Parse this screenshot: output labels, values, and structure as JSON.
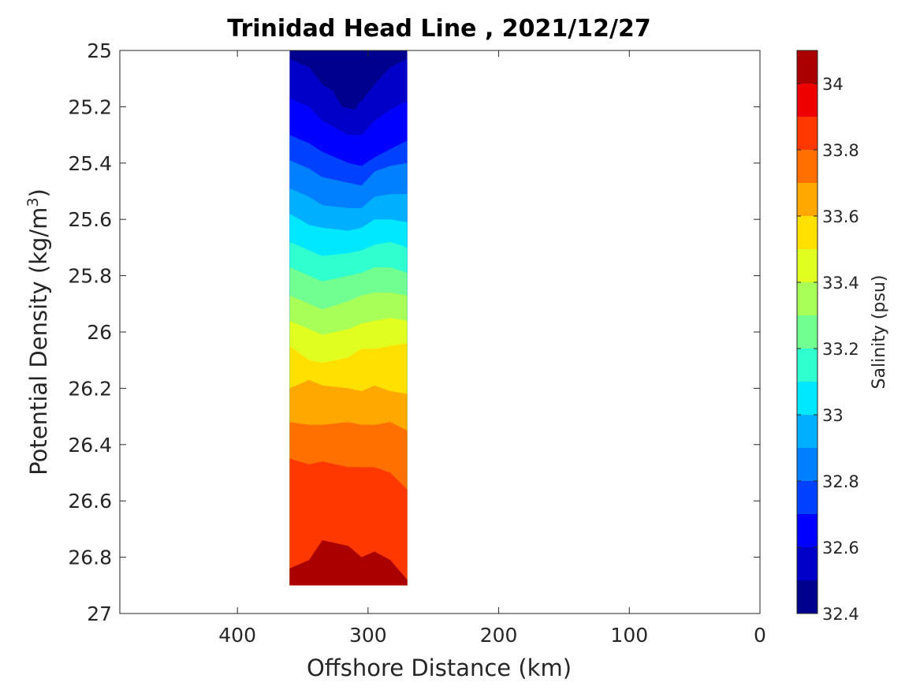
{
  "chart_data": {
    "type": "heatmap",
    "subtype": "filled-contour",
    "title": "Trinidad Head Line , 2021/12/27",
    "xlabel": "Offshore Distance (km)",
    "ylabel_main": "Potential Density (kg/m",
    "ylabel_sup": "3",
    "ylabel_close": ")",
    "xlim": [
      490,
      0
    ],
    "x_reversed": true,
    "xticks": [
      400,
      300,
      200,
      100,
      0
    ],
    "xtick_labels": [
      "400",
      "300",
      "200",
      "100",
      "0"
    ],
    "ylim": [
      25,
      27
    ],
    "y_reversed": true,
    "yticks": [
      25,
      25.2,
      25.4,
      25.6,
      25.8,
      26,
      26.2,
      26.4,
      26.6,
      26.8,
      27
    ],
    "ytick_labels": [
      "25",
      "25.2",
      "25.4",
      "25.6",
      "25.8",
      "26",
      "26.2",
      "26.4",
      "26.6",
      "26.8",
      "27"
    ],
    "colorbar": {
      "label": "Salinity (psu)",
      "range": [
        32.4,
        34.1
      ],
      "ticks": [
        32.4,
        32.6,
        32.8,
        33,
        33.2,
        33.4,
        33.6,
        33.8,
        34
      ],
      "tick_labels": [
        "32.4",
        "32.6",
        "32.8",
        "33",
        "33.2",
        "33.4",
        "33.6",
        "33.8",
        "34"
      ],
      "levels": [
        32.4,
        32.5,
        32.6,
        32.7,
        32.8,
        32.9,
        33.0,
        33.1,
        33.2,
        33.3,
        33.4,
        33.5,
        33.6,
        33.7,
        33.8,
        33.9,
        34.0,
        34.1
      ],
      "colors": [
        "#00008F",
        "#0000C8",
        "#0000FF",
        "#0040FF",
        "#0080FF",
        "#00B0FF",
        "#00E8FF",
        "#30FFD0",
        "#70FF90",
        "#A8FF58",
        "#E0FF20",
        "#FFE000",
        "#FFA800",
        "#FF7000",
        "#FF3800",
        "#EE0000",
        "#AA0000"
      ]
    },
    "data_extent": {
      "x": [
        360,
        270
      ],
      "y": [
        25,
        26.9
      ]
    },
    "grid": false,
    "salinity_boundaries": [
      {
        "level": 32.5,
        "points": [
          [
            360,
            25.0
          ],
          [
            345,
            25.0
          ],
          [
            335,
            25.0
          ],
          [
            315,
            25.0
          ],
          [
            305,
            25.0
          ],
          [
            295,
            25.0
          ],
          [
            283,
            25.0
          ],
          [
            270,
            25.0
          ]
        ],
        "note": ""
      },
      {
        "level": 32.6,
        "points": [
          [
            360,
            25.03
          ],
          [
            345,
            25.06
          ],
          [
            335,
            25.12
          ],
          [
            315,
            25.18
          ],
          [
            305,
            25.18
          ],
          [
            295,
            25.12
          ],
          [
            283,
            25.06
          ],
          [
            270,
            25.03
          ]
        ]
      },
      {
        "level": 32.7,
        "points": [
          [
            360,
            25.17
          ],
          [
            345,
            25.2
          ],
          [
            335,
            25.25
          ],
          [
            315,
            25.3
          ],
          [
            305,
            25.3
          ],
          [
            295,
            25.25
          ],
          [
            283,
            25.21
          ],
          [
            270,
            25.18
          ]
        ]
      },
      {
        "level": 32.8,
        "points": [
          [
            360,
            25.3
          ],
          [
            345,
            25.33
          ],
          [
            335,
            25.36
          ],
          [
            315,
            25.4
          ],
          [
            305,
            25.41
          ],
          [
            295,
            25.38
          ],
          [
            283,
            25.35
          ],
          [
            270,
            25.32
          ]
        ]
      },
      {
        "level": 32.9,
        "points": [
          [
            360,
            25.39
          ],
          [
            345,
            25.42
          ],
          [
            335,
            25.45
          ],
          [
            315,
            25.47
          ],
          [
            305,
            25.48
          ],
          [
            295,
            25.43
          ],
          [
            283,
            25.41
          ],
          [
            270,
            25.4
          ]
        ]
      },
      {
        "level": 33.0,
        "points": [
          [
            360,
            25.49
          ],
          [
            345,
            25.52
          ],
          [
            335,
            25.55
          ],
          [
            315,
            25.56
          ],
          [
            305,
            25.56
          ],
          [
            295,
            25.52
          ],
          [
            283,
            25.51
          ],
          [
            270,
            25.51
          ]
        ]
      },
      {
        "level": 33.1,
        "points": [
          [
            360,
            25.58
          ],
          [
            345,
            25.62
          ],
          [
            335,
            25.63
          ],
          [
            315,
            25.64
          ],
          [
            305,
            25.63
          ],
          [
            295,
            25.6
          ],
          [
            283,
            25.6
          ],
          [
            270,
            25.61
          ]
        ]
      },
      {
        "level": 33.2,
        "points": [
          [
            360,
            25.68
          ],
          [
            345,
            25.71
          ],
          [
            335,
            25.73
          ],
          [
            315,
            25.72
          ],
          [
            305,
            25.71
          ],
          [
            295,
            25.69
          ],
          [
            283,
            25.68
          ],
          [
            270,
            25.7
          ]
        ]
      },
      {
        "level": 33.3,
        "points": [
          [
            360,
            25.77
          ],
          [
            345,
            25.8
          ],
          [
            335,
            25.82
          ],
          [
            315,
            25.8
          ],
          [
            305,
            25.79
          ],
          [
            295,
            25.77
          ],
          [
            283,
            25.77
          ],
          [
            270,
            25.79
          ]
        ]
      },
      {
        "level": 33.4,
        "points": [
          [
            360,
            25.87
          ],
          [
            345,
            25.9
          ],
          [
            335,
            25.92
          ],
          [
            315,
            25.89
          ],
          [
            305,
            25.87
          ],
          [
            295,
            25.86
          ],
          [
            283,
            25.86
          ],
          [
            270,
            25.87
          ]
        ]
      },
      {
        "level": 33.5,
        "points": [
          [
            360,
            25.96
          ],
          [
            345,
            25.99
          ],
          [
            335,
            26.01
          ],
          [
            315,
            25.99
          ],
          [
            305,
            25.97
          ],
          [
            295,
            25.96
          ],
          [
            283,
            25.95
          ],
          [
            270,
            25.96
          ]
        ]
      },
      {
        "level": 33.6,
        "points": [
          [
            360,
            26.05
          ],
          [
            345,
            26.1
          ],
          [
            335,
            26.11
          ],
          [
            315,
            26.09
          ],
          [
            305,
            26.06
          ],
          [
            295,
            26.06
          ],
          [
            283,
            26.05
          ],
          [
            270,
            26.04
          ]
        ]
      },
      {
        "level": 33.7,
        "points": [
          [
            360,
            26.2
          ],
          [
            345,
            26.17
          ],
          [
            335,
            26.19
          ],
          [
            315,
            26.2
          ],
          [
            305,
            26.21
          ],
          [
            295,
            26.19
          ],
          [
            283,
            26.21
          ],
          [
            270,
            26.22
          ]
        ]
      },
      {
        "level": 33.8,
        "points": [
          [
            360,
            26.32
          ],
          [
            345,
            26.33
          ],
          [
            335,
            26.33
          ],
          [
            315,
            26.32
          ],
          [
            305,
            26.33
          ],
          [
            295,
            26.33
          ],
          [
            283,
            26.32
          ],
          [
            270,
            26.35
          ]
        ]
      },
      {
        "level": 33.9,
        "points": [
          [
            360,
            26.45
          ],
          [
            345,
            26.47
          ],
          [
            335,
            26.46
          ],
          [
            315,
            26.48
          ],
          [
            305,
            26.48
          ],
          [
            295,
            26.48
          ],
          [
            283,
            26.5
          ],
          [
            270,
            26.56
          ]
        ]
      },
      {
        "level": 34.0,
        "points": [
          [
            360,
            26.84
          ],
          [
            345,
            26.81
          ],
          [
            335,
            26.74
          ],
          [
            315,
            26.76
          ],
          [
            305,
            26.8
          ],
          [
            295,
            26.78
          ],
          [
            283,
            26.81
          ],
          [
            270,
            26.88
          ]
        ]
      }
    ]
  }
}
